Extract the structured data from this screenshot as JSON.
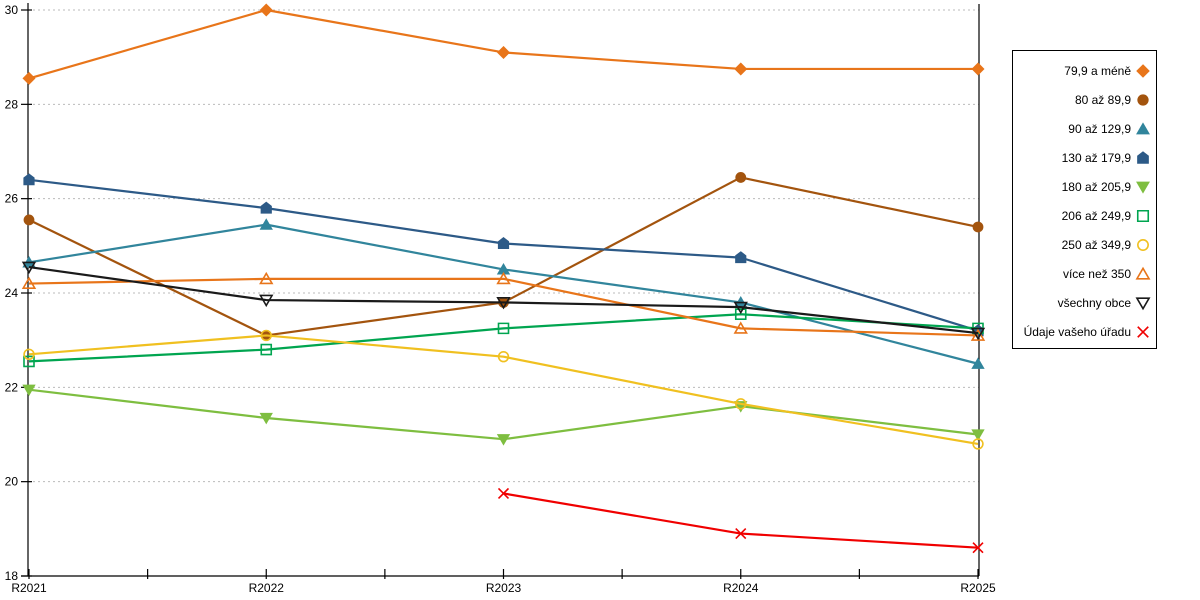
{
  "chart_data": {
    "type": "line",
    "title": "",
    "xlabel": "",
    "ylabel": "",
    "x_categories": [
      "R2021",
      "R2022",
      "R2023",
      "R2024",
      "R2025"
    ],
    "ylim": [
      18,
      30
    ],
    "yticks": [
      18,
      20,
      22,
      24,
      26,
      28,
      30
    ],
    "grid": "horizontal-dashed",
    "grid_color": "#BBBBBB",
    "axis_color": "#000000",
    "legend_position": "right-box",
    "series": [
      {
        "name": "79,9 a méně",
        "color": "#E8751A",
        "marker": "diamond",
        "filled": true,
        "values": [
          28.55,
          30.0,
          29.1,
          28.75,
          28.75
        ]
      },
      {
        "name": "80 až 89,9",
        "color": "#A3540E",
        "marker": "circle",
        "filled": true,
        "values": [
          25.55,
          23.1,
          23.8,
          26.45,
          25.4
        ]
      },
      {
        "name": "90 až 129,9",
        "color": "#31859C",
        "marker": "triangle-up",
        "filled": true,
        "values": [
          24.65,
          25.45,
          24.5,
          23.8,
          22.5
        ]
      },
      {
        "name": "130 až 179,9",
        "color": "#2D5A87",
        "marker": "pentagon",
        "filled": true,
        "values": [
          26.4,
          25.8,
          25.05,
          24.75,
          23.2
        ]
      },
      {
        "name": "180 až 205,9",
        "color": "#7EBE40",
        "marker": "triangle-down",
        "filled": true,
        "values": [
          21.95,
          21.35,
          20.9,
          21.6,
          21.0
        ]
      },
      {
        "name": "206 až 249,9",
        "color": "#00A550",
        "marker": "square",
        "filled": false,
        "values": [
          22.55,
          22.8,
          23.25,
          23.55,
          23.25
        ]
      },
      {
        "name": "250 až 349,9",
        "color": "#F0C020",
        "marker": "circle",
        "filled": false,
        "values": [
          22.7,
          23.1,
          22.65,
          21.65,
          20.8
        ]
      },
      {
        "name": "více než 350",
        "color": "#E8751A",
        "marker": "triangle-up",
        "filled": false,
        "values": [
          24.2,
          24.3,
          24.3,
          23.25,
          23.1
        ]
      },
      {
        "name": "všechny obce",
        "color": "#1A1A1A",
        "marker": "triangle-down",
        "filled": false,
        "values": [
          24.55,
          23.85,
          23.8,
          23.7,
          23.15
        ]
      },
      {
        "name": "Údaje vašeho úřadu",
        "color": "#F00000",
        "marker": "x",
        "filled": false,
        "values": [
          null,
          null,
          19.75,
          18.9,
          18.6
        ]
      }
    ]
  }
}
